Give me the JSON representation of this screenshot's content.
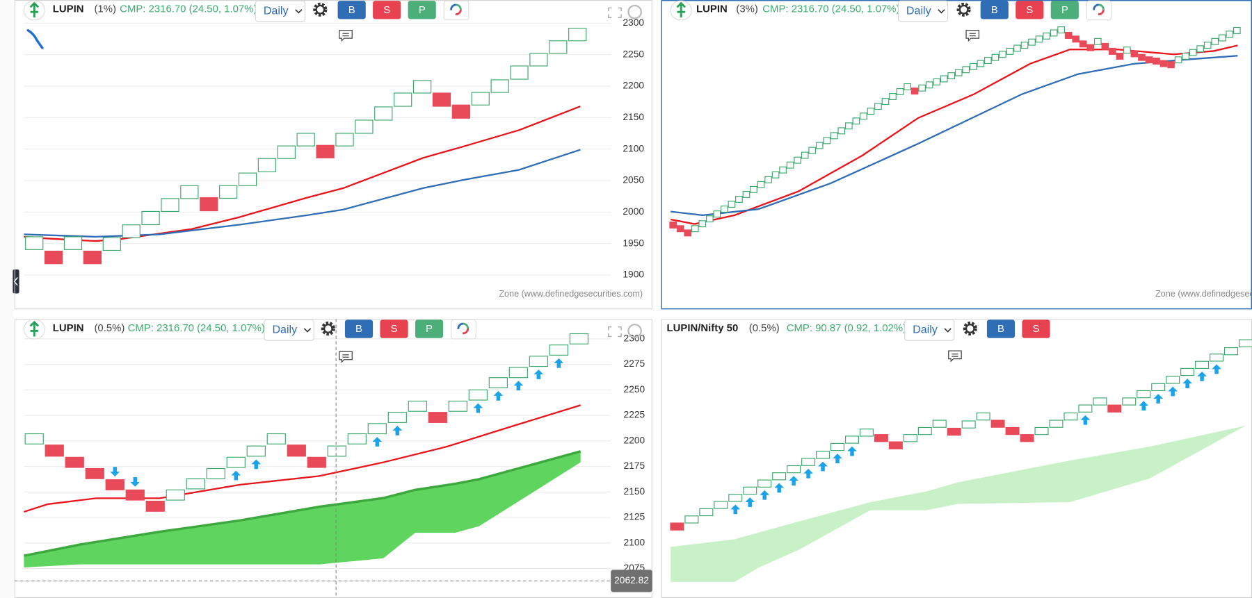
{
  "panels": [
    {
      "header": {
        "symbol": "LUPIN",
        "box": "(1%)",
        "cmp": "CMP: 2316.70 (24.50, 1.07%)",
        "timeframe": "Daily",
        "buttons": [
          "B",
          "S",
          "P"
        ]
      },
      "footer": "Zone (www.definedgesecurities.com)",
      "chart_data": {
        "type": "renko",
        "xlim": [
          -0.53,
          29.72
        ],
        "ylim": [
          1891.1,
          2308.9
        ],
        "yticks": [
          1900,
          1950,
          2000,
          2050,
          2100,
          2150,
          2200,
          2250,
          2300
        ],
        "grid": true,
        "bricks": [
          {
            "color": "#3aa66a",
            "fill": "#ffffff",
            "x": [
              0,
              2,
              4,
              5,
              6,
              7,
              8,
              10,
              11,
              12,
              13,
              14,
              16,
              17,
              18,
              19,
              20,
              23,
              24,
              25,
              26,
              27,
              28
            ],
            "low": [
              1940.5,
              1940.5,
              1939.2,
              1959.5,
              1980,
              2001,
              2021.5,
              2022,
              2042,
              2064,
              2085,
              2105,
              2105,
              2125,
              2146,
              2168,
              2189,
              2170,
              2190,
              2211,
              2232,
              2252,
              2272
            ],
            "high": [
              1960.8,
              1960.8,
              1959.5,
              1979.7,
              2001,
              2021.5,
              2042,
              2042,
              2062,
              2085,
              2105,
              2125,
              2125,
              2146,
              2167,
              2189,
              2209,
              2190,
              2210,
              2232,
              2252,
              2272,
              2292
            ]
          },
          {
            "color": "#e84a5a",
            "fill": "#e84a5a",
            "x": [
              1,
              3,
              9,
              15,
              21,
              22
            ],
            "low": [
              1918,
              1918,
              2002,
              2086,
              2168,
              2149
            ],
            "high": [
              1938,
              1938,
              2023,
              2106,
              2189,
              2170
            ]
          }
        ],
        "lines": [
          {
            "color": "#e8141b",
            "x": [
              -0.53,
              0.7,
              3.17,
              4.4,
              8.1,
              10.58,
              14.07,
              15.93,
              20.04,
              22.1,
              24.98,
              28.15
            ],
            "values": [
              1960.8,
              1958,
              1954,
              1957,
              1973,
              1992,
              2023,
              2038,
              2086,
              2104,
              2130,
              2168
            ]
          },
          {
            "color": "#2f6db5",
            "x": [
              -0.53,
              3.17,
              6.46,
              10.58,
              14.07,
              15.93,
              20.04,
              22.1,
              24.98,
              28.15
            ],
            "values": [
              1964.6,
              1960.8,
              1964.6,
              1980,
              1995,
              2004,
              2038,
              2051,
              2067,
              2099
            ]
          }
        ]
      }
    },
    {
      "header": {
        "symbol": "LUPIN",
        "box": "(3%)",
        "cmp": "CMP: 2316.70 (24.50, 1.07%)",
        "timeframe": "Daily",
        "buttons": [
          "B",
          "S",
          "P"
        ]
      },
      "footer": "Zone (www.definedgesecurities.com)",
      "chart_data": {
        "type": "renko",
        "xlim": [
          -0.65,
          79.06
        ],
        "ylim": [
          1900,
          2330.2
        ],
        "bricks": [
          {
            "color": "#3aa66a",
            "fill": "#ffffff",
            "x": [
              3,
              4,
              5,
              6,
              7,
              8,
              9,
              10,
              11,
              12,
              13,
              14,
              15,
              16,
              17,
              18,
              19,
              20,
              21,
              22,
              23,
              24,
              25,
              26,
              27,
              28,
              29,
              30,
              31,
              32,
              34,
              35,
              36,
              37,
              38,
              39,
              40,
              41,
              42,
              43,
              44,
              45,
              46,
              47,
              48,
              49,
              50,
              51,
              52,
              53,
              58,
              62,
              69,
              70,
              71,
              72,
              73,
              74,
              75,
              76,
              77
            ],
            "low": [
              1980,
              1988,
              1996,
              2004,
              2012,
              2020,
              2028,
              2036,
              2044,
              2052,
              2060,
              2068,
              2076,
              2084,
              2092,
              2100,
              2108,
              2116,
              2124,
              2132,
              2140,
              2148,
              2156,
              2164,
              2172,
              2180,
              2188,
              2196,
              2204,
              2212,
              2210,
              2215,
              2220,
              2225,
              2230,
              2235,
              2240,
              2245,
              2250,
              2255,
              2260,
              2265,
              2270,
              2275,
              2280,
              2285,
              2290,
              2295,
              2300,
              2305,
              2286,
              2272,
              2256,
              2262,
              2268,
              2274,
              2280,
              2286,
              2292,
              2298,
              2304
            ],
            "high": [
              1990,
              1998,
              2006,
              2014,
              2022,
              2030,
              2038,
              2046,
              2054,
              2062,
              2070,
              2078,
              2086,
              2094,
              2102,
              2110,
              2118,
              2126,
              2134,
              2142,
              2150,
              2158,
              2166,
              2174,
              2182,
              2190,
              2198,
              2206,
              2214,
              2222,
              2220,
              2225,
              2230,
              2235,
              2240,
              2245,
              2250,
              2255,
              2260,
              2265,
              2270,
              2275,
              2280,
              2285,
              2290,
              2295,
              2300,
              2305,
              2310,
              2315,
              2296,
              2282,
              2266,
              2272,
              2278,
              2284,
              2290,
              2296,
              2302,
              2308,
              2314
            ]
          },
          {
            "color": "#e84a5a",
            "fill": "#e84a5a",
            "x": [
              0,
              1,
              2,
              33,
              54,
              55,
              56,
              57,
              59,
              60,
              61,
              63,
              64,
              65,
              66,
              67,
              68
            ],
            "low": [
              1986,
              1980,
              1973,
              2205,
              2296,
              2290,
              2282,
              2276,
              2278,
              2270,
              2262,
              2266,
              2260,
              2256,
              2254,
              2250,
              2248
            ],
            "high": [
              1996,
              1990,
              1983,
              2215,
              2306,
              2300,
              2292,
              2286,
              2288,
              2280,
              2272,
              2276,
              2270,
              2266,
              2264,
              2260,
              2258
            ]
          }
        ],
        "lines": [
          {
            "color": "#e8141b",
            "x": [
              -0.33,
              2.94,
              8.4,
              17.12,
              25.85,
              33.48,
              41.11,
              48.75,
              54.2,
              60.74,
              68.38,
              73.83,
              77.1
            ],
            "values": [
              2000,
              1992.6,
              2007,
              2046,
              2104.7,
              2166,
              2205,
              2254.6,
              2278,
              2278,
              2270,
              2275.5,
              2284.6
            ]
          },
          {
            "color": "#2f6db5",
            "x": [
              -0.33,
              4.03,
              11.67,
              21.48,
              33.48,
              47.66,
              55.29,
              62.92,
              69.47,
              77.1
            ],
            "values": [
              2013,
              2007,
              2017,
              2059,
              2124,
              2205,
              2237.7,
              2254.6,
              2261,
              2267.7
            ]
          }
        ]
      }
    },
    {
      "header": {
        "symbol": "LUPIN",
        "box": "(0.5%)",
        "cmp": "CMP: 2316.70 (24.50, 1.07%)",
        "timeframe": "Daily",
        "buttons": [
          "B",
          "S",
          "P"
        ]
      },
      "chart_data": {
        "type": "renko",
        "xlim": [
          -0.51,
          28.58
        ],
        "ylim": [
          2050,
          2315.6
        ],
        "yticks": [
          2075,
          2100,
          2125,
          2150,
          2175,
          2200,
          2225,
          2250,
          2275,
          2300
        ],
        "grid": true,
        "cloud": {
          "color": "#5fd45f",
          "edge_color": "#3da83d",
          "x": [
            -0.51,
            2.26,
            6.22,
            10.17,
            14.13,
            17.3,
            18.88,
            20.86,
            22.05,
            27.08
          ],
          "upper": [
            2087.5,
            2098.4,
            2111,
            2122,
            2135.5,
            2144,
            2152,
            2158,
            2162.5,
            2189.8
          ],
          "lower": [
            2076,
            2079,
            2079,
            2079,
            2079,
            2085,
            2110,
            2110,
            2116.4,
            2179
          ]
        },
        "bricks": [
          {
            "color": "#3aa66a",
            "fill": "#ffffff",
            "x": [
              0,
              7,
              8,
              9,
              10,
              11,
              12,
              15,
              16,
              17,
              18,
              19,
              21,
              22,
              23,
              24,
              25,
              26,
              27
            ],
            "low": [
              2197,
              2142,
              2153,
              2163,
              2174,
              2185,
              2197,
              2185,
              2197,
              2207,
              2218,
              2229,
              2229,
              2240,
              2252,
              2262,
              2273,
              2284,
              2295
            ],
            "high": [
              2207,
              2152,
              2163,
              2173,
              2184,
              2195,
              2207,
              2195,
              2207,
              2217,
              2228,
              2239,
              2239,
              2250,
              2262,
              2272,
              2283,
              2294,
              2305
            ]
          },
          {
            "color": "#e84a5a",
            "fill": "#e84a5a",
            "x": [
              1,
              2,
              3,
              4,
              5,
              6,
              13,
              14,
              20
            ],
            "low": [
              2185,
              2174,
              2163,
              2152,
              2142,
              2131,
              2185,
              2174,
              2218
            ],
            "high": [
              2196,
              2184,
              2173,
              2162,
              2152,
              2141,
              2196,
              2184,
              2228
            ]
          }
        ],
        "lines": [
          {
            "color": "#e8141b",
            "x": [
              -0.51,
              0.67,
              3.05,
              6.22,
              10.17,
              14.13,
              17.3,
              20.47,
              23.63,
              27.08
            ],
            "values": [
              2130.5,
              2138,
              2143.8,
              2143.8,
              2157,
              2165.6,
              2179,
              2194.5,
              2214,
              2235
            ]
          }
        ],
        "signals": [
          {
            "direction": "up",
            "color": "#1aa3e8",
            "x": [
              10,
              11,
              17,
              18,
              22,
              23,
              24,
              25,
              26
            ]
          },
          {
            "direction": "down",
            "color": "#1aa3e8",
            "x": [
              4,
              5
            ]
          }
        ],
        "cursor": {
          "x": 14.96,
          "value": 2062.82
        }
      }
    },
    {
      "header": {
        "symbol": "LUPIN/Nifty 50",
        "box": "(0.5%)",
        "cmp": "CMP: 90.87 (0.92, 1.02%)",
        "timeframe": "Daily",
        "buttons": [
          "B",
          "S"
        ]
      },
      "chart_data": {
        "type": "renko",
        "xlim": [
          -0.6,
          39.43
        ],
        "ylim": [
          76.58,
          92.13
        ],
        "cloud": {
          "color": "#c9f1c7",
          "x": [
            -0.44,
            3.94,
            5.59,
            8.32,
            13.25,
            17.09,
            19.28,
            26.94,
            32.42,
            38.99
          ],
          "upper": [
            79.47,
            79.9,
            80.28,
            80.9,
            82.0,
            82.6,
            83.12,
            84.35,
            85.14,
            86.32
          ],
          "lower": [
            77.49,
            77.49,
            78.3,
            79.29,
            81.54,
            81.54,
            81.9,
            82.0,
            83.34,
            86.32
          ]
        },
        "bricks": [
          {
            "color": "#3aa66a",
            "fill": "#ffffff",
            "x": [
              1,
              2,
              3,
              4,
              5,
              6,
              7,
              8,
              9,
              10,
              11,
              12,
              13,
              16,
              17,
              18,
              20,
              21,
              25,
              26,
              27,
              28,
              29,
              31,
              32,
              33,
              34,
              35,
              36,
              37,
              38,
              39
            ],
            "low": [
              80.82,
              81.23,
              81.64,
              82.04,
              82.45,
              82.85,
              83.26,
              83.66,
              84.07,
              84.47,
              84.92,
              85.33,
              85.73,
              85.42,
              85.82,
              86.23,
              86.19,
              86.64,
              85.82,
              86.23,
              86.64,
              87.09,
              87.49,
              87.49,
              87.9,
              88.3,
              88.71,
              89.16,
              89.56,
              89.97,
              90.33,
              90.78
            ],
            "high": [
              81.22,
              81.63,
              82.04,
              82.44,
              82.85,
              83.25,
              83.66,
              84.06,
              84.47,
              84.87,
              85.32,
              85.73,
              86.13,
              85.82,
              86.22,
              86.63,
              86.59,
              87.04,
              86.22,
              86.63,
              87.04,
              87.49,
              87.89,
              87.89,
              88.3,
              88.7,
              89.11,
              89.56,
              89.96,
              90.37,
              90.73,
              91.18
            ]
          },
          {
            "color": "#e84a5a",
            "fill": "#e84a5a",
            "x": [
              0,
              14,
              15,
              19,
              22,
              23,
              24,
              30
            ],
            "low": [
              80.42,
              85.42,
              85.01,
              85.78,
              86.23,
              85.82,
              85.42,
              87.09
            ],
            "high": [
              80.82,
              85.82,
              85.41,
              86.18,
              86.63,
              86.22,
              85.82,
              87.49
            ]
          }
        ],
        "signals": [
          {
            "direction": "up",
            "color": "#1aa3e8",
            "x": [
              4,
              5,
              6,
              7,
              8,
              9,
              10,
              11,
              12,
              28,
              32,
              33,
              34,
              35,
              36,
              37
            ]
          }
        ]
      }
    }
  ]
}
